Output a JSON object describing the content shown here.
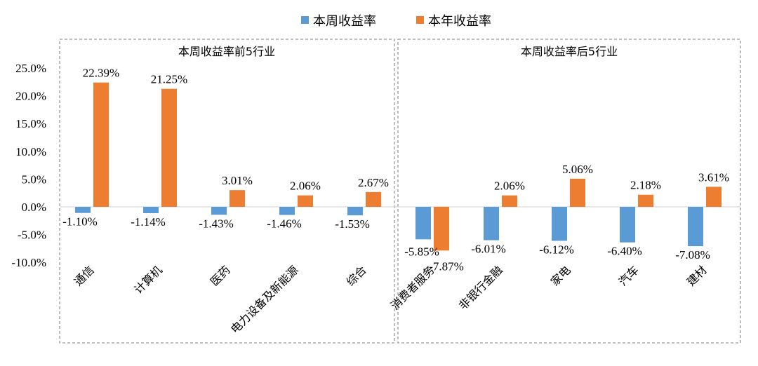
{
  "chart_data": {
    "type": "bar",
    "ylim": [
      -10,
      25
    ],
    "yticks": [
      "25.0%",
      "20.0%",
      "15.0%",
      "10.0%",
      "5.0%",
      "0.0%",
      "-5.0%",
      "-10.0%"
    ],
    "ytick_values": [
      25,
      20,
      15,
      10,
      5,
      0,
      -5,
      -10
    ],
    "legend": {
      "position": "top-center",
      "entries": [
        {
          "name": "本周收益率",
          "color": "#5B9BD5"
        },
        {
          "name": "本年收益率",
          "color": "#ED7D31"
        }
      ]
    },
    "panels": [
      {
        "title": "本周收益率前5行业"
      },
      {
        "title": "本周收益率后5行业"
      }
    ],
    "categories": [
      "通信",
      "计算机",
      "医药",
      "电力设备及新能源",
      "综合",
      "消费者服务",
      "非银行金融",
      "家电",
      "汽车",
      "建材"
    ],
    "series": [
      {
        "name": "本周收益率",
        "color": "#5B9BD5",
        "values": [
          -1.1,
          -1.14,
          -1.43,
          -1.46,
          -1.53,
          -5.85,
          -6.01,
          -6.12,
          -6.4,
          -7.08
        ],
        "labels": [
          "-1.10%",
          "-1.14%",
          "-1.43%",
          "-1.46%",
          "-1.53%",
          "-5.85%",
          "-6.01%",
          "-6.12%",
          "-6.40%",
          "-7.08%"
        ]
      },
      {
        "name": "本年收益率",
        "color": "#ED7D31",
        "values": [
          22.39,
          21.25,
          3.01,
          2.06,
          2.67,
          -7.87,
          2.06,
          5.06,
          2.18,
          3.61
        ],
        "labels": [
          "22.39%",
          "21.25%",
          "3.01%",
          "2.06%",
          "2.67%",
          "-7.87%",
          "2.06%",
          "5.06%",
          "2.18%",
          "3.61%"
        ]
      }
    ]
  }
}
